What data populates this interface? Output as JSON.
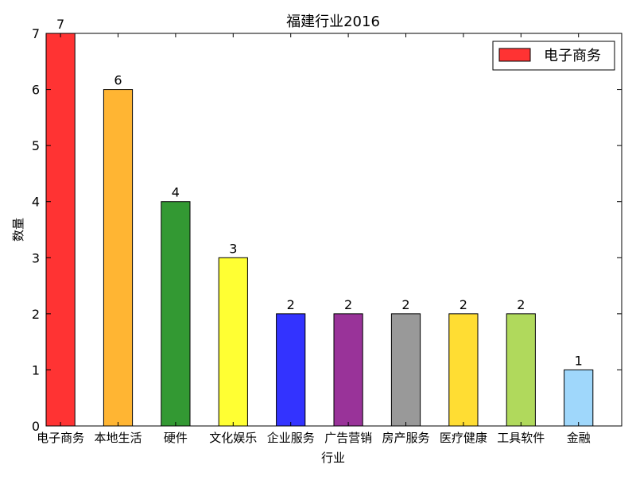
{
  "chart_data": {
    "type": "bar",
    "title": "福建行业2016",
    "xlabel": "行业",
    "ylabel": "数量",
    "categories": [
      "电子商务",
      "本地生活",
      "硬件",
      "文化娱乐",
      "企业服务",
      "广告营销",
      "房产服务",
      "医疗健康",
      "工具软件",
      "金融"
    ],
    "series": [
      {
        "name": "电子商务",
        "values": [
          7,
          6,
          4,
          3,
          2,
          2,
          2,
          2,
          2,
          1
        ]
      }
    ],
    "data_labels": [
      "7",
      "6",
      "4",
      "3",
      "2",
      "2",
      "2",
      "2",
      "2",
      "1"
    ],
    "bar_colors": [
      "#ff3333",
      "#ffb533",
      "#339933",
      "#ffff33",
      "#3333ff",
      "#993399",
      "#999999",
      "#ffdd33",
      "#b0d95c",
      "#9fd7fb"
    ],
    "ylim": [
      0,
      7
    ],
    "yticks": [
      0,
      1,
      2,
      3,
      4,
      5,
      6,
      7
    ],
    "grid": false,
    "legend": {
      "position": "top-right",
      "label": "电子商务",
      "color": "#ff3333"
    }
  }
}
